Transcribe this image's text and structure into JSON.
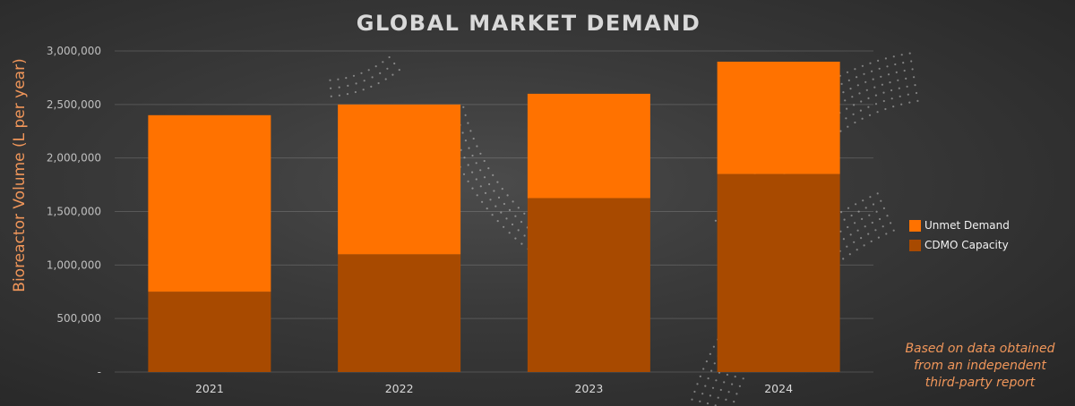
{
  "colors": {
    "unmet_demand": "#ff7200",
    "cdmo_capacity": "#a84a00",
    "axis_title": "#f0965a"
  },
  "chart_data": {
    "type": "bar",
    "stacked": true,
    "title": "GLOBAL MARKET DEMAND",
    "xlabel": "",
    "ylabel": "Bioreactor Volume (L per year)",
    "categories": [
      "2021",
      "2022",
      "2023",
      "2024"
    ],
    "series": [
      {
        "name": "CDMO Capacity",
        "values": [
          750000,
          1100000,
          1625000,
          1850000
        ]
      },
      {
        "name": "Unmet Demand",
        "values": [
          1650000,
          1400000,
          975000,
          1050000
        ]
      }
    ],
    "ylim": [
      0,
      3000000
    ],
    "y_ticks": [
      {
        "value": 0,
        "label": "-"
      },
      {
        "value": 500000,
        "label": "500,000"
      },
      {
        "value": 1000000,
        "label": "1,000,000"
      },
      {
        "value": 1500000,
        "label": "1,500,000"
      },
      {
        "value": 2000000,
        "label": "2,000,000"
      },
      {
        "value": 2500000,
        "label": "2,500,000"
      },
      {
        "value": 3000000,
        "label": "3,000,000"
      }
    ],
    "grid": true,
    "legend_position": "right",
    "legend": [
      "Unmet Demand",
      "CDMO Capacity"
    ]
  },
  "note": [
    "Based on data obtained",
    "from an independent",
    "third-party report"
  ]
}
